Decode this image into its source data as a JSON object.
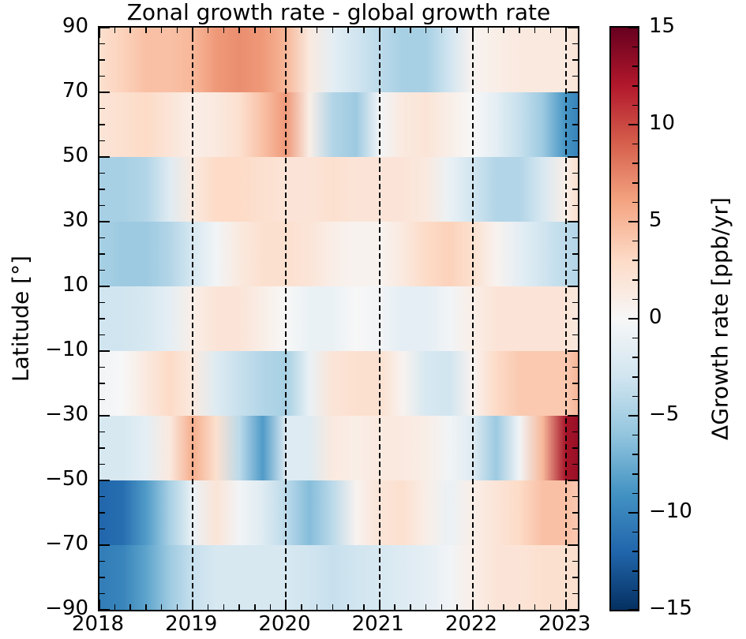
{
  "chart_data": {
    "type": "heatmap",
    "title": "Zonal growth rate - global growth rate",
    "ylabel": "Latitude [°]",
    "x_range": [
      2018,
      2023.125
    ],
    "x_major_ticks": [
      2018,
      2019,
      2020,
      2021,
      2022,
      2023
    ],
    "x_tick_labels": [
      "2018",
      "2019",
      "2020",
      "2021",
      "2022",
      "2023"
    ],
    "x_minor_step": 0.16667,
    "y_range": [
      -90,
      90
    ],
    "y_major_ticks": [
      90,
      70,
      50,
      30,
      10,
      -10,
      -30,
      -50,
      -70,
      -90
    ],
    "y_tick_labels": [
      "90",
      "70",
      "50",
      "30",
      "10",
      "−10",
      "−30",
      "−50",
      "−70",
      "−90"
    ],
    "y_minor_step": 5,
    "dashed_year_lines": [
      2019,
      2020,
      2021,
      2022,
      2023
    ],
    "grid": false,
    "colorbar": {
      "label": "ΔGrowth rate [ppb/yr]",
      "range": [
        -15,
        15
      ],
      "major_ticks": [
        15,
        10,
        5,
        0,
        -5,
        -10,
        -15
      ],
      "major_tick_labels": [
        "15",
        "10",
        "5",
        "0",
        "−5",
        "−10",
        "−15"
      ],
      "minor_step": 1,
      "colormap_name": "RdBu_r",
      "colormap_anchors": [
        "#053061",
        "#2166ac",
        "#4393c3",
        "#92c5de",
        "#d1e5f0",
        "#f7f7f7",
        "#fddbc7",
        "#f4a582",
        "#d6604d",
        "#b2182b",
        "#67001f"
      ]
    },
    "time_samples": [
      2018.0,
      2018.25,
      2018.5,
      2018.75,
      2019.0,
      2019.25,
      2019.5,
      2019.75,
      2020.0,
      2020.25,
      2020.5,
      2020.75,
      2021.0,
      2021.25,
      2021.5,
      2021.75,
      2022.0,
      2022.25,
      2022.5,
      2022.75,
      2023.0,
      2023.125
    ],
    "value_units": "ppb/yr",
    "bands": [
      {
        "lat_range": [
          90,
          70
        ],
        "values": [
          2.5,
          3.5,
          4.5,
          4.5,
          5,
          6.5,
          7,
          6.5,
          5,
          1.5,
          -1.5,
          -3,
          -4,
          -5,
          -5,
          -3,
          0.5,
          1,
          1.5,
          1.5,
          1.5,
          2
        ]
      },
      {
        "lat_range": [
          70,
          50
        ],
        "values": [
          2,
          2.5,
          3,
          2,
          1,
          1.5,
          2.5,
          4.5,
          6.5,
          1,
          -4.5,
          -5.5,
          -0.5,
          1.5,
          2,
          1,
          0,
          -1.5,
          -3.5,
          -5.5,
          -9,
          -10
        ]
      },
      {
        "lat_range": [
          50,
          30
        ],
        "values": [
          -5,
          -5,
          -4.5,
          -2,
          1.5,
          3,
          3,
          2.5,
          2,
          2,
          2.5,
          2,
          2,
          2,
          1.5,
          -1,
          -3,
          -4.5,
          -4.5,
          -2.5,
          1,
          2.5
        ]
      },
      {
        "lat_range": [
          30,
          10
        ],
        "values": [
          -5,
          -5.5,
          -5.5,
          -4.5,
          -2.5,
          -0.5,
          1.5,
          2.5,
          2.5,
          2,
          1,
          0.5,
          0.5,
          1.5,
          3,
          3.5,
          2.5,
          0.5,
          -1.5,
          -3,
          -4,
          -4.5
        ]
      },
      {
        "lat_range": [
          10,
          -10
        ],
        "values": [
          -3,
          -3,
          -2.5,
          -1.5,
          1,
          2,
          2,
          1,
          0,
          -1,
          -1,
          0,
          -0.5,
          -1.5,
          -1.5,
          -0.5,
          1,
          2,
          2,
          2,
          2,
          1.5
        ]
      },
      {
        "lat_range": [
          -10,
          -30
        ],
        "values": [
          -0.5,
          0,
          1.5,
          3,
          1.5,
          -2,
          -3.5,
          -4.5,
          -5,
          -1,
          2,
          2.5,
          2.5,
          0.5,
          -2.5,
          -3,
          0.5,
          3,
          4,
          4,
          4,
          5
        ]
      },
      {
        "lat_range": [
          -30,
          -50
        ],
        "values": [
          -2.5,
          -2.5,
          -1.5,
          1.5,
          5.5,
          2.5,
          -4,
          -8.5,
          -2,
          -2,
          1.5,
          1,
          1.5,
          1.5,
          1,
          -0.5,
          -2,
          -5.5,
          -0.5,
          5,
          12.5,
          13
        ]
      },
      {
        "lat_range": [
          -50,
          -70
        ],
        "values": [
          -12,
          -11.5,
          -8.5,
          -5,
          -1,
          2,
          -0.5,
          -2,
          -4,
          -6.5,
          -4,
          0.5,
          2,
          2.5,
          1,
          -1,
          1,
          2,
          3,
          4.5,
          4.5,
          4
        ]
      },
      {
        "lat_range": [
          -70,
          -90
        ],
        "values": [
          -10.5,
          -10,
          -8,
          -5.5,
          -3.5,
          -2.5,
          -2.5,
          -2.5,
          -2.5,
          -3,
          -3.5,
          -3,
          -2.5,
          -2,
          -1.5,
          -0.5,
          1,
          2,
          2,
          2.5,
          2.5,
          2.5
        ]
      }
    ]
  }
}
